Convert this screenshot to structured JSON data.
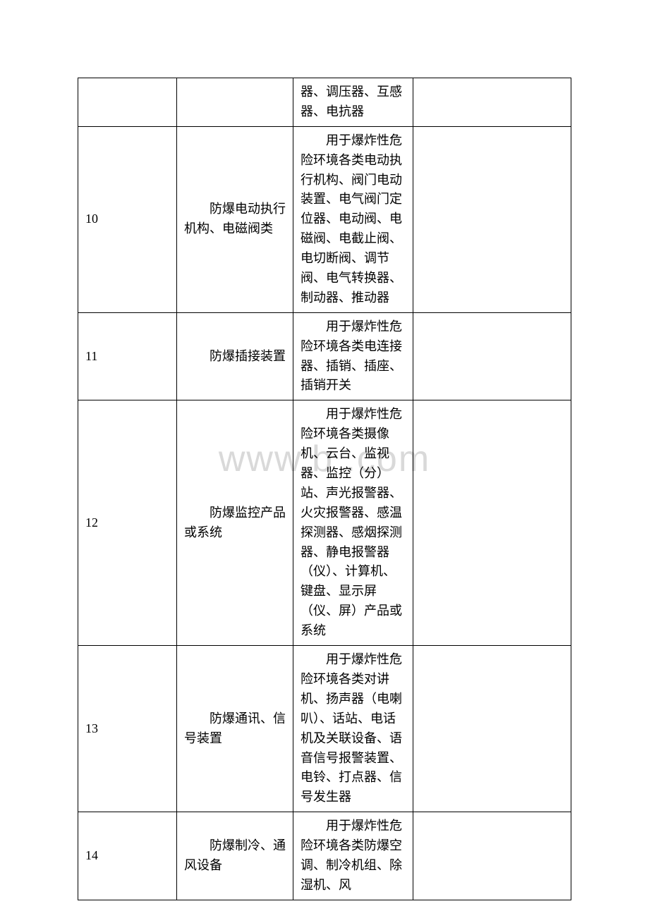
{
  "watermark": "www.b    .com",
  "table": {
    "rows": [
      {
        "num": "",
        "category": "",
        "description": "器、调压器、互感器、电抗器",
        "remark": ""
      },
      {
        "num": "10",
        "category": "　　防爆电动执行机构、电磁阀类",
        "description": "　　用于爆炸性危险环境各类电动执行机构、阀门电动装置、电气阀门定位器、电动阀、电磁阀、电截止阀、电切断阀、调节阀、电气转换器、制动器、推动器",
        "remark": ""
      },
      {
        "num": "11",
        "category": "　　防爆插接装置",
        "description": "　　用于爆炸性危险环境各类电连接器、插销、插座、插销开关",
        "remark": ""
      },
      {
        "num": "12",
        "category": "　　防爆监控产品或系统",
        "description": "　　用于爆炸性危险环境各类摄像机、云台、监视器、监控（分）站、声光报警器、火灾报警器、感温探测器、感烟探测器、静电报警器（仪）、计算机、键盘、显示屏（仪、屏）产品或系统",
        "remark": ""
      },
      {
        "num": "13",
        "category": "　　防爆通讯、信号装置",
        "description": "　　用于爆炸性危险环境各类对讲机、扬声器（电喇叭）、话站、电话机及关联设备、语音信号报警装置、电铃、打点器、信号发生器",
        "remark": ""
      },
      {
        "num": "14",
        "category": "　　防爆制冷、通风设备",
        "description": "　　用于爆炸性危险环境各类防爆空调、制冷机组、除湿机、风",
        "remark": ""
      }
    ]
  }
}
